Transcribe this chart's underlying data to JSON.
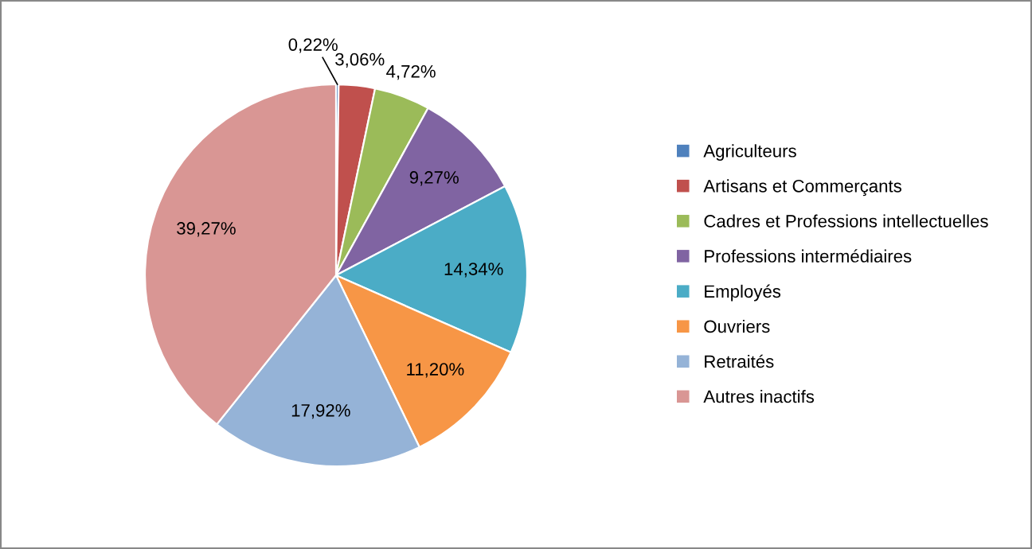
{
  "chart_data": {
    "type": "pie",
    "categories": [
      "Agriculteurs",
      "Artisans et Commerçants",
      "Cadres et Professions intellectuelles",
      "Professions intermédiaires",
      "Employés",
      "Ouvriers",
      "Retraités",
      "Autres inactifs"
    ],
    "values": [
      0.22,
      3.06,
      4.72,
      9.27,
      14.34,
      11.2,
      17.92,
      39.27
    ],
    "value_labels": [
      "0,22%",
      "3,06%",
      "4,72%",
      "9,27%",
      "14,34%",
      "11,20%",
      "17,92%",
      "39,27%"
    ],
    "colors": [
      "#4f81bd",
      "#c0504d",
      "#9bbb59",
      "#8064a2",
      "#4bacc6",
      "#f79646",
      "#95b3d7",
      "#d99694"
    ],
    "legend": "right"
  }
}
